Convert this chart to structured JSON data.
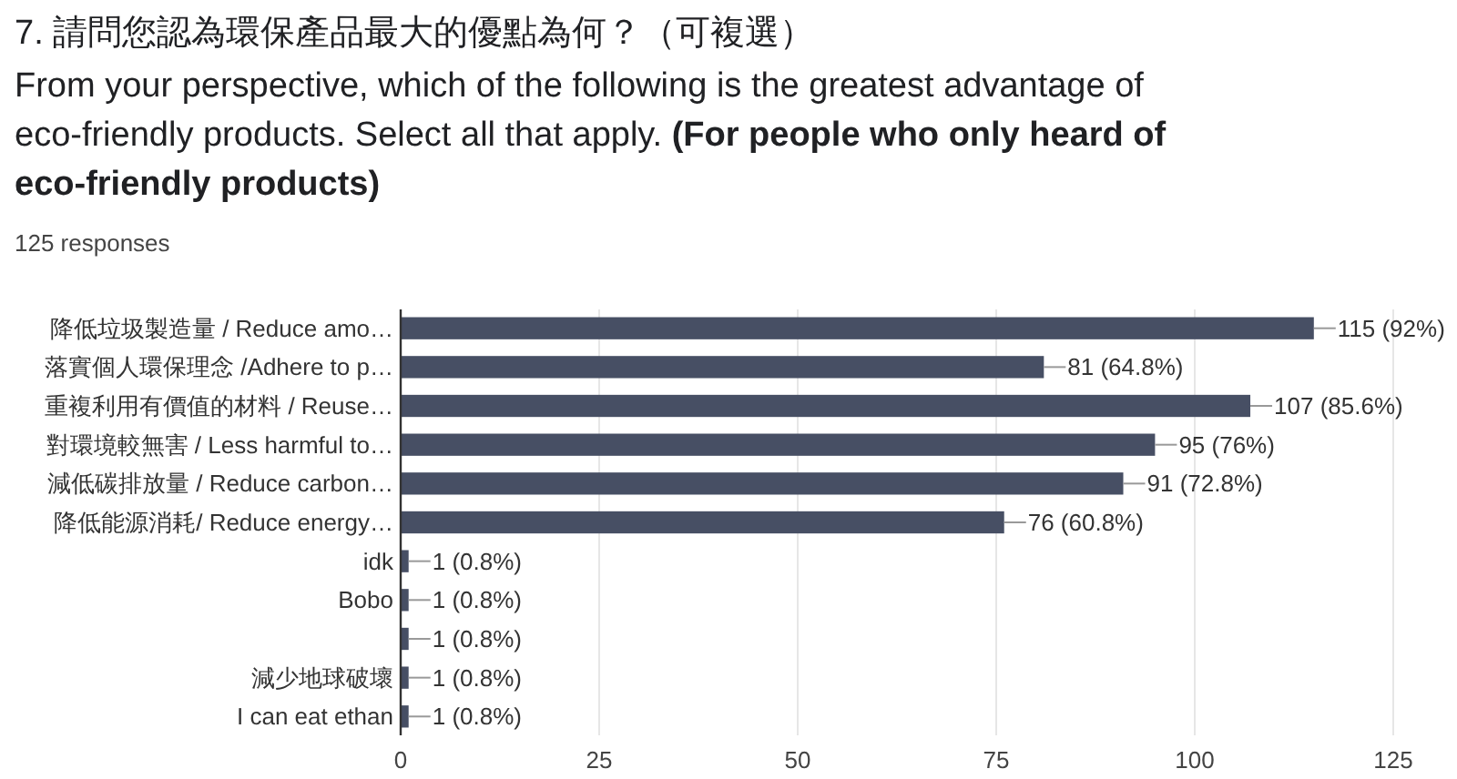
{
  "chart_data": {
    "type": "bar",
    "orientation": "horizontal",
    "title": "7. 請問您認為環保產品最大的優點為何？（可複選）",
    "subtitle": "From your perspective, which of the following is the greatest advantage of eco-friendly products. Select all that apply.",
    "annotations": [
      "(For people who only heard of eco-friendly products)",
      "125 responses"
    ],
    "categories": [
      "降低垃圾製造量 / Reduce amo…",
      "落實個人環保理念 /Adhere to p…",
      "重複利用有價值的材料 / Reuse…",
      "對環境較無害 / Less harmful to…",
      "減低碳排放量 / Reduce carbon…",
      "降低能源消耗/ Reduce energy…",
      "idk",
      "Bobo",
      null,
      "減少地球破壞",
      "I can eat ethan"
    ],
    "values": [
      115,
      81,
      107,
      95,
      91,
      76,
      1,
      1,
      1,
      1,
      1
    ],
    "value_labels": [
      "115 (92%)",
      "81 (64.8%)",
      "107 (85.6%)",
      "95 (76%)",
      "91 (72.8%)",
      "76 (60.8%)",
      "1 (0.8%)",
      "1 (0.8%)",
      "1 (0.8%)",
      "1 (0.8%)",
      "1 (0.8%)"
    ],
    "color": "#474f64",
    "xlim": [
      0,
      125
    ],
    "xticks": [
      0,
      25,
      50,
      75,
      100,
      125
    ],
    "grid": "x"
  }
}
